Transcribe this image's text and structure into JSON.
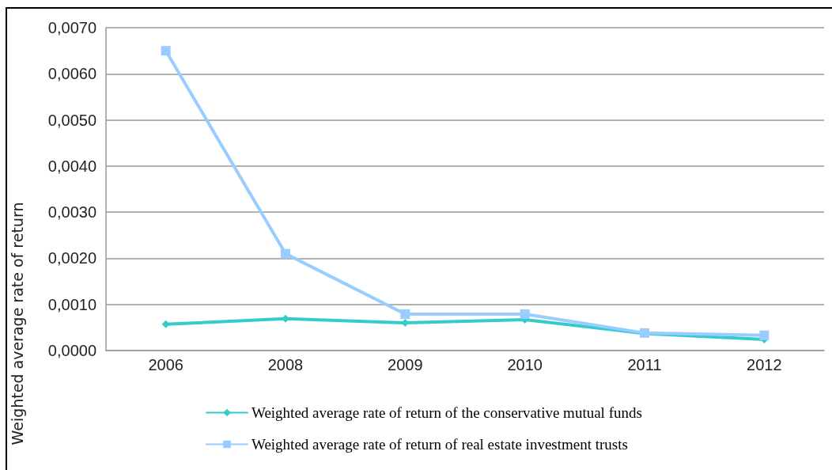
{
  "chart_data": {
    "type": "line",
    "ylabel": "Weighted average rate of return",
    "categories": [
      "2006",
      "2008",
      "2009",
      "2010",
      "2011",
      "2012"
    ],
    "series": [
      {
        "name": "Weighted average rate of return of the conservative mutual funds",
        "color": "#33cccc",
        "marker": "diamond",
        "values": [
          0.00057,
          0.00069,
          0.0006,
          0.00067,
          0.00037,
          0.00024
        ]
      },
      {
        "name": "Weighted average rate of return of real estate investment trusts",
        "color": "#99ccff",
        "marker": "square",
        "values": [
          0.0065,
          0.0021,
          0.00079,
          0.00079,
          0.00038,
          0.00033
        ]
      }
    ],
    "ylim": [
      0,
      0.007
    ],
    "yticks": [
      {
        "value": 0,
        "label": "0,0000"
      },
      {
        "value": 0.001,
        "label": "0,0010"
      },
      {
        "value": 0.002,
        "label": "0,0020"
      },
      {
        "value": 0.003,
        "label": "0,0030"
      },
      {
        "value": 0.004,
        "label": "0,0040"
      },
      {
        "value": 0.005,
        "label": "0,0050"
      },
      {
        "value": 0.006,
        "label": "0,0060"
      },
      {
        "value": 0.007,
        "label": "0,0070"
      }
    ],
    "grid": "y",
    "legend": "bottom",
    "line_style": "solid"
  }
}
